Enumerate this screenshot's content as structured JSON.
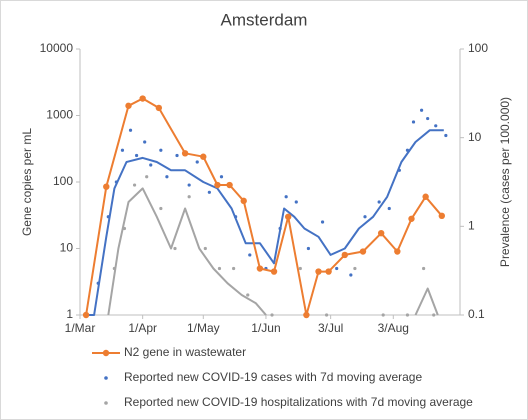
{
  "chart_data": {
    "type": "line",
    "title": "Amsterdam",
    "y_label": "Gene copies per mL",
    "y2_label": "Prevalence (cases per 100.000)",
    "y_scale": "log",
    "y2_scale": "log",
    "xlim": [
      "03-01",
      "09-05"
    ],
    "xticks": [
      {
        "value": "03-01",
        "label": "1/Mar"
      },
      {
        "value": "04-01",
        "label": "1/Apr"
      },
      {
        "value": "05-01",
        "label": "1/May"
      },
      {
        "value": "06-01",
        "label": "1/Jun"
      },
      {
        "value": "07-03",
        "label": "3/Jul"
      },
      {
        "value": "08-03",
        "label": "3/Aug"
      }
    ],
    "ylim": [
      1,
      10000
    ],
    "yticks": [
      1,
      10,
      100,
      1000,
      10000
    ],
    "y2lim": [
      0.1,
      100
    ],
    "y2ticks": [
      0.1,
      1,
      10,
      100
    ],
    "legend": "bottom",
    "series": [
      {
        "name": "N2 gene in wastewater",
        "color": "#ED7D31",
        "markers": true,
        "x": [
          "03-04",
          "03-14",
          "03-25",
          "04-01",
          "04-09",
          "04-22",
          "05-01",
          "05-08",
          "05-14",
          "05-21",
          "05-29",
          "06-05",
          "06-12",
          "06-21",
          "06-27",
          "07-02",
          "07-10",
          "07-19",
          "07-28",
          "08-05",
          "08-12",
          "08-19",
          "08-27"
        ],
        "values": [
          1,
          85,
          1400,
          1800,
          1300,
          270,
          240,
          90,
          90,
          52,
          5,
          4.5,
          30,
          1,
          4.5,
          4.5,
          8,
          9,
          17,
          9,
          28,
          60,
          31
        ]
      },
      {
        "name": "Reported new COVID-19 cases with 7d moving average",
        "color": "#4472C4",
        "markers": false,
        "x": [
          "03-04",
          "03-08",
          "03-14",
          "03-18",
          "03-24",
          "04-01",
          "04-08",
          "04-15",
          "04-22",
          "05-01",
          "05-08",
          "05-15",
          "05-22",
          "05-29",
          "06-05",
          "06-10",
          "06-15",
          "06-20",
          "06-27",
          "07-03",
          "07-10",
          "07-17",
          "07-24",
          "07-31",
          "08-07",
          "08-14",
          "08-21",
          "08-28"
        ],
        "values": [
          1,
          1,
          15,
          80,
          200,
          230,
          200,
          150,
          150,
          100,
          80,
          40,
          12,
          12,
          6,
          40,
          30,
          20,
          15,
          8,
          10,
          20,
          30,
          60,
          200,
          400,
          600,
          600
        ],
        "dots": {
          "x": [
            "03-10",
            "03-15",
            "03-19",
            "03-22",
            "03-26",
            "03-29",
            "04-02",
            "04-05",
            "04-10",
            "04-13",
            "04-18",
            "04-24",
            "04-28",
            "05-04",
            "05-10",
            "05-17",
            "05-24",
            "06-01",
            "06-08",
            "06-11",
            "06-16",
            "06-22",
            "06-29",
            "07-06",
            "07-13",
            "07-20",
            "07-27",
            "08-01",
            "08-06",
            "08-10",
            "08-13",
            "08-17",
            "08-20",
            "08-24",
            "08-29"
          ],
          "values": [
            3,
            30,
            100,
            300,
            600,
            250,
            400,
            180,
            300,
            120,
            250,
            90,
            200,
            70,
            120,
            30,
            8,
            5,
            20,
            60,
            50,
            10,
            25,
            5,
            4,
            30,
            50,
            40,
            150,
            300,
            800,
            1200,
            900,
            700,
            500
          ]
        }
      },
      {
        "name": "Reported new COVID-19 hospitalizations with 7d moving average",
        "color": "#A5A5A5",
        "markers": false,
        "x": [
          "03-15",
          "03-20",
          "03-25",
          "04-01",
          "04-08",
          "04-15",
          "04-22",
          "04-29",
          "05-06",
          "05-13",
          "05-20",
          "05-27",
          "06-01",
          "06-10",
          "08-14",
          "08-20",
          "08-25"
        ],
        "values": [
          1,
          10,
          50,
          80,
          30,
          10,
          40,
          10,
          5,
          3,
          2,
          1.5,
          1,
          null,
          1,
          2.5,
          1
        ],
        "dots": {
          "x": [
            "03-18",
            "03-23",
            "03-28",
            "04-03",
            "04-10",
            "04-17",
            "04-24",
            "05-02",
            "05-09",
            "05-16",
            "05-23",
            "06-04",
            "06-18",
            "07-01",
            "07-15",
            "07-29",
            "08-10",
            "08-18",
            "08-23"
          ],
          "values": [
            5,
            20,
            90,
            120,
            40,
            10,
            60,
            10,
            5,
            5,
            2,
            1,
            5,
            1,
            5,
            1,
            1,
            5,
            1
          ]
        }
      }
    ]
  }
}
